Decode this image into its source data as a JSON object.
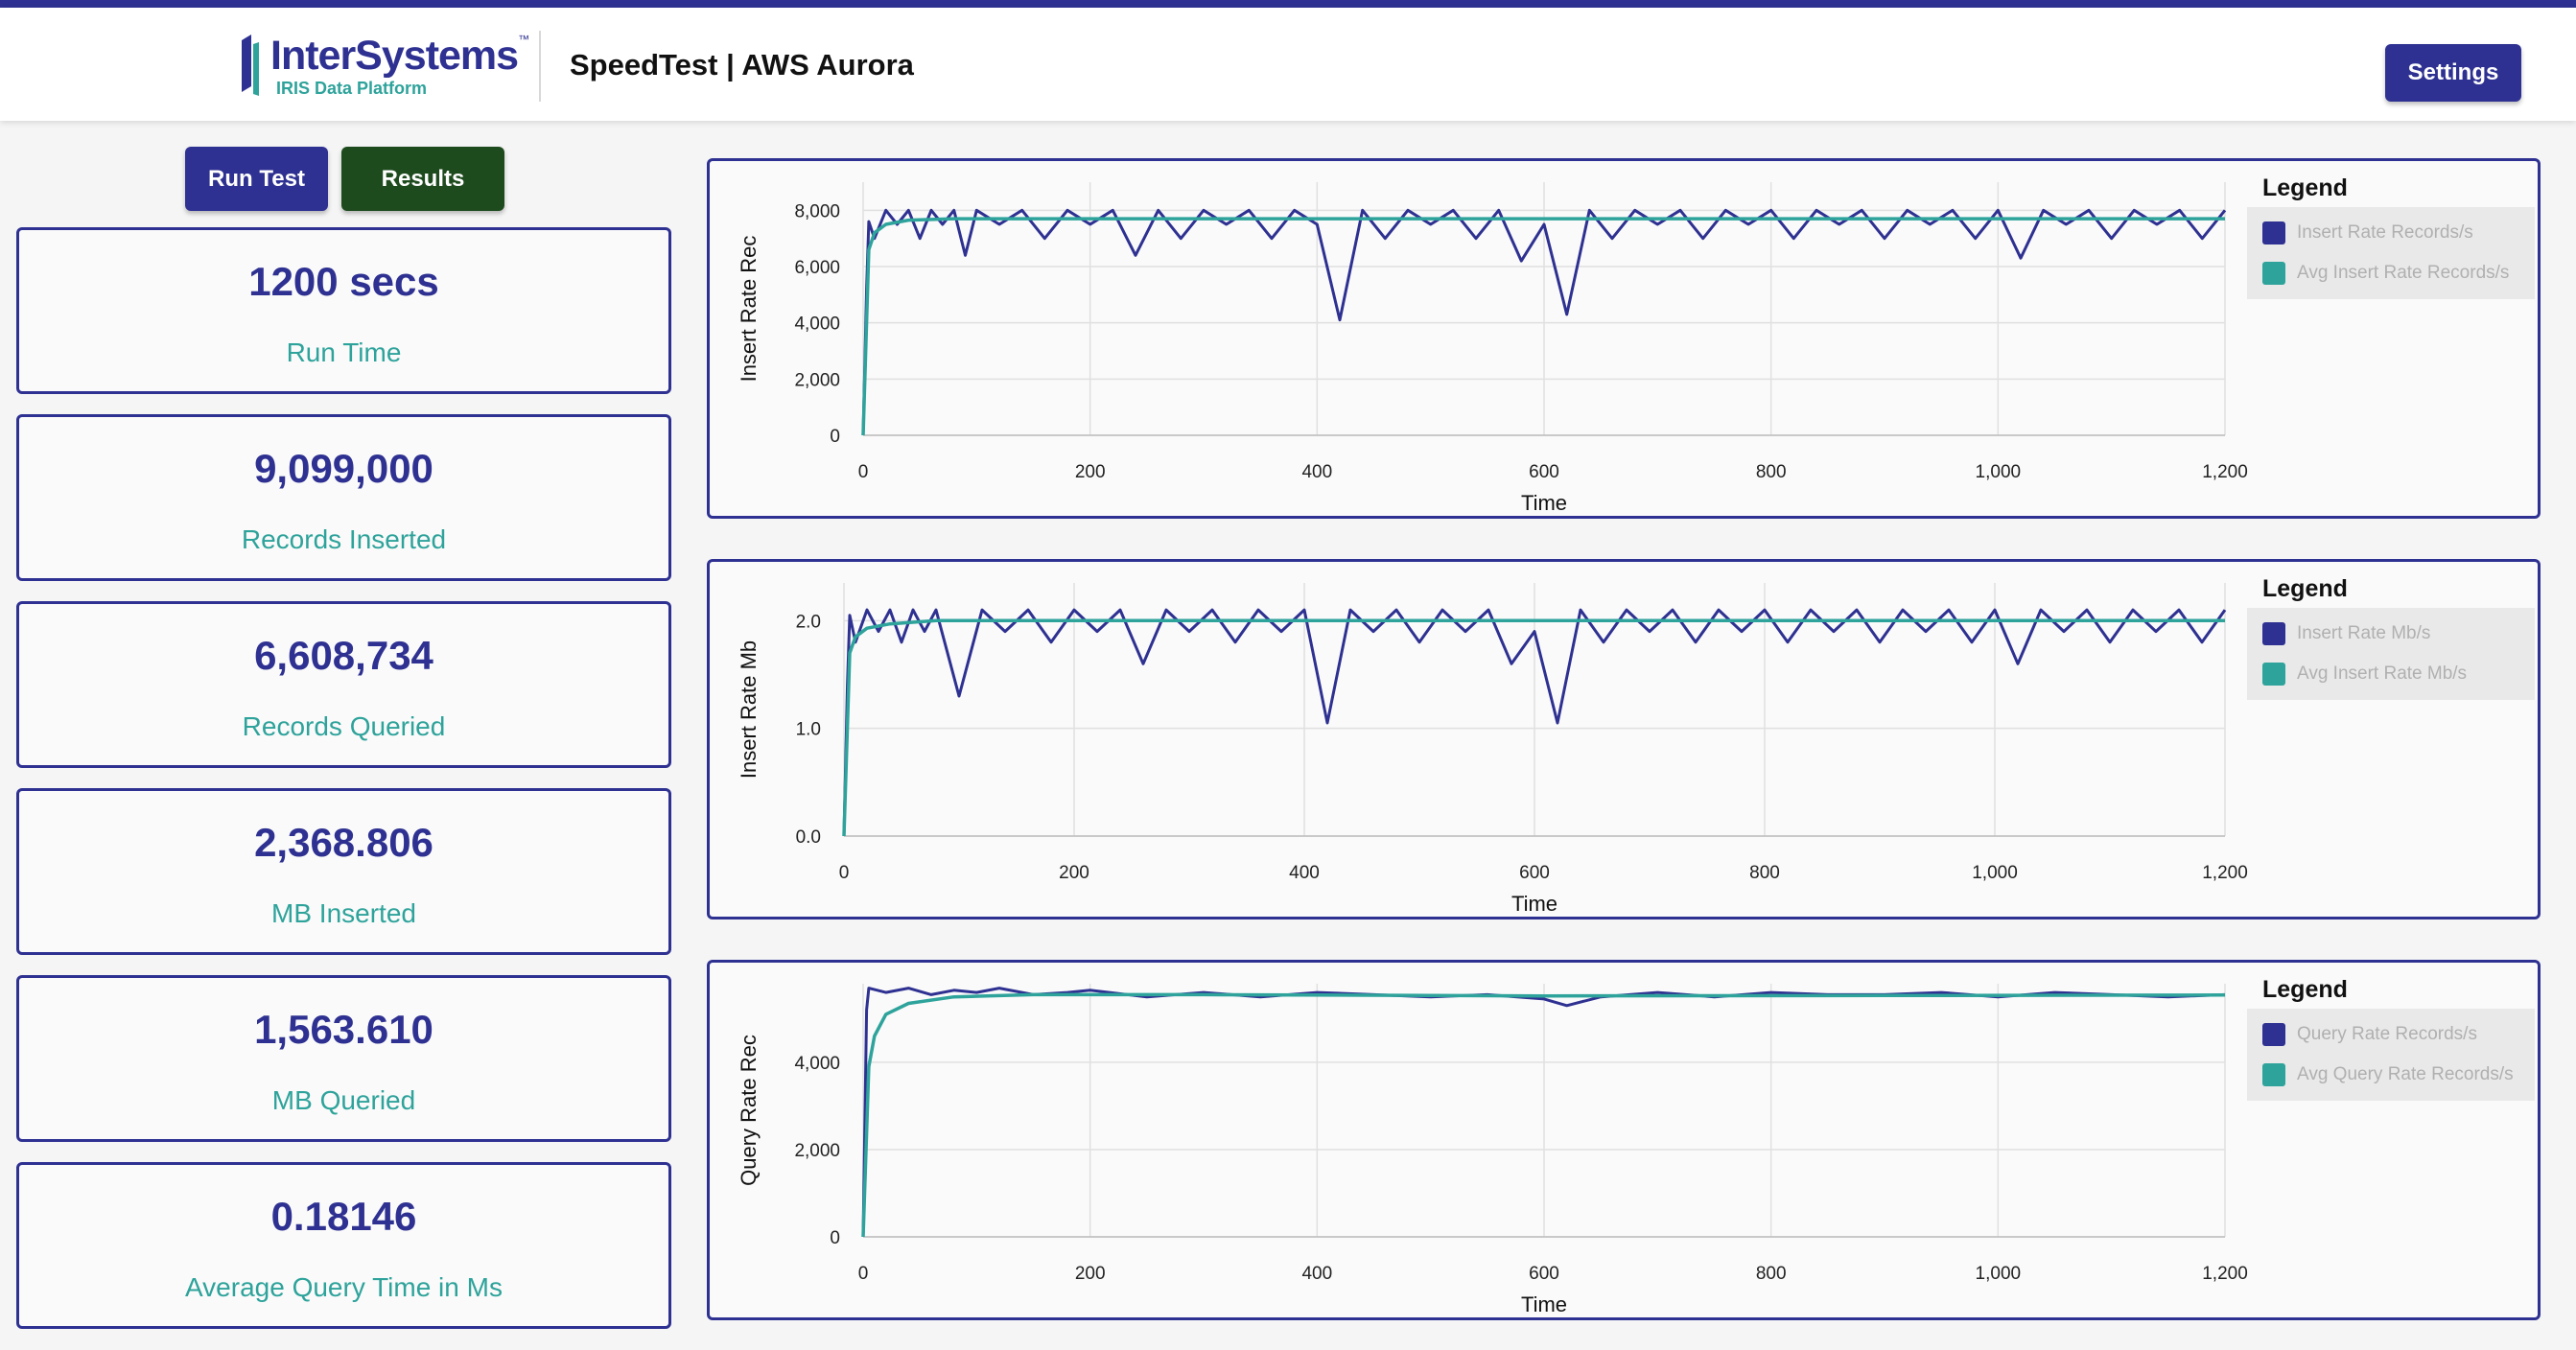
{
  "header": {
    "logo_name": "InterSystems",
    "logo_tm": "™",
    "logo_sub": "IRIS Data Platform",
    "title": "SpeedTest | AWS Aurora",
    "settings_label": "Settings"
  },
  "actions": {
    "run_label": "Run Test",
    "results_label": "Results"
  },
  "stats": [
    {
      "value": "1200 secs",
      "label": "Run Time"
    },
    {
      "value": "9,099,000",
      "label": "Records Inserted"
    },
    {
      "value": "6,608,734",
      "label": "Records Queried"
    },
    {
      "value": "2,368.806",
      "label": "MB Inserted"
    },
    {
      "value": "1,563.610",
      "label": "MB Queried"
    },
    {
      "value": "0.18146",
      "label": "Average Query Time in Ms"
    }
  ],
  "colors": {
    "primary": "#2e3191",
    "teal": "#2ea39b",
    "results_btn": "#1e4b1e",
    "grid": "#e0e0e0"
  },
  "chart_data": [
    {
      "type": "line",
      "ylabel": "Insert Rate Rec",
      "xlabel": "Time",
      "legend_title": "Legend",
      "legend_position": "right",
      "xlim": [
        0,
        1200
      ],
      "ylim": [
        0,
        9000
      ],
      "x_ticks": [
        0,
        200,
        400,
        600,
        800,
        1000,
        1200
      ],
      "x_tick_labels": [
        "0",
        "200",
        "400",
        "600",
        "800",
        "1,000",
        "1,200"
      ],
      "y_ticks": [
        0,
        2000,
        4000,
        6000,
        8000
      ],
      "y_tick_labels": [
        "0",
        "2,000",
        "4,000",
        "6,000",
        "8,000"
      ],
      "series": [
        {
          "name": "Insert Rate Records/s",
          "color": "#2e3191",
          "points": [
            [
              0,
              0
            ],
            [
              3,
              5200
            ],
            [
              5,
              7600
            ],
            [
              10,
              7000
            ],
            [
              20,
              8000
            ],
            [
              30,
              7500
            ],
            [
              40,
              8000
            ],
            [
              50,
              7000
            ],
            [
              60,
              8000
            ],
            [
              70,
              7500
            ],
            [
              80,
              8000
            ],
            [
              90,
              6400
            ],
            [
              100,
              8000
            ],
            [
              120,
              7500
            ],
            [
              140,
              8000
            ],
            [
              160,
              7000
            ],
            [
              180,
              8000
            ],
            [
              200,
              7500
            ],
            [
              220,
              8000
            ],
            [
              240,
              6400
            ],
            [
              260,
              8000
            ],
            [
              280,
              7000
            ],
            [
              300,
              8000
            ],
            [
              320,
              7500
            ],
            [
              340,
              8000
            ],
            [
              360,
              7000
            ],
            [
              380,
              8000
            ],
            [
              400,
              7500
            ],
            [
              420,
              4100
            ],
            [
              440,
              8000
            ],
            [
              460,
              7000
            ],
            [
              480,
              8000
            ],
            [
              500,
              7500
            ],
            [
              520,
              8000
            ],
            [
              540,
              7000
            ],
            [
              560,
              8000
            ],
            [
              580,
              6200
            ],
            [
              600,
              7500
            ],
            [
              620,
              4300
            ],
            [
              640,
              8000
            ],
            [
              660,
              7000
            ],
            [
              680,
              8000
            ],
            [
              700,
              7500
            ],
            [
              720,
              8000
            ],
            [
              740,
              7000
            ],
            [
              760,
              8000
            ],
            [
              780,
              7500
            ],
            [
              800,
              8000
            ],
            [
              820,
              7000
            ],
            [
              840,
              8000
            ],
            [
              860,
              7500
            ],
            [
              880,
              8000
            ],
            [
              900,
              7000
            ],
            [
              920,
              8000
            ],
            [
              940,
              7500
            ],
            [
              960,
              8000
            ],
            [
              980,
              7000
            ],
            [
              1000,
              8000
            ],
            [
              1020,
              6300
            ],
            [
              1040,
              8000
            ],
            [
              1060,
              7500
            ],
            [
              1080,
              8000
            ],
            [
              1100,
              7000
            ],
            [
              1120,
              8000
            ],
            [
              1140,
              7500
            ],
            [
              1160,
              8000
            ],
            [
              1180,
              7000
            ],
            [
              1200,
              8000
            ]
          ]
        },
        {
          "name": "Avg Insert Rate Records/s",
          "color": "#2ea39b",
          "points": [
            [
              0,
              0
            ],
            [
              5,
              6600
            ],
            [
              10,
              7200
            ],
            [
              20,
              7500
            ],
            [
              40,
              7650
            ],
            [
              80,
              7700
            ],
            [
              150,
              7700
            ],
            [
              300,
              7700
            ],
            [
              600,
              7700
            ],
            [
              900,
              7700
            ],
            [
              1200,
              7700
            ]
          ]
        }
      ]
    },
    {
      "type": "line",
      "ylabel": "Insert Rate Mb",
      "xlabel": "Time",
      "legend_title": "Legend",
      "legend_position": "right",
      "xlim": [
        0,
        1200
      ],
      "ylim": [
        0,
        2.35
      ],
      "x_ticks": [
        0,
        200,
        400,
        600,
        800,
        1000,
        1200
      ],
      "x_tick_labels": [
        "0",
        "200",
        "400",
        "600",
        "800",
        "1,000",
        "1,200"
      ],
      "y_ticks": [
        0,
        1,
        2
      ],
      "y_tick_labels": [
        "0.0",
        "1.0",
        "2.0"
      ],
      "series": [
        {
          "name": "Insert Rate Mb/s",
          "color": "#2e3191",
          "points": [
            [
              0,
              0
            ],
            [
              3,
              1.4
            ],
            [
              5,
              2.05
            ],
            [
              10,
              1.8
            ],
            [
              20,
              2.1
            ],
            [
              30,
              1.9
            ],
            [
              40,
              2.1
            ],
            [
              50,
              1.8
            ],
            [
              60,
              2.1
            ],
            [
              70,
              1.9
            ],
            [
              80,
              2.1
            ],
            [
              100,
              1.3
            ],
            [
              120,
              2.1
            ],
            [
              140,
              1.9
            ],
            [
              160,
              2.1
            ],
            [
              180,
              1.8
            ],
            [
              200,
              2.1
            ],
            [
              220,
              1.9
            ],
            [
              240,
              2.1
            ],
            [
              260,
              1.6
            ],
            [
              280,
              2.1
            ],
            [
              300,
              1.9
            ],
            [
              320,
              2.1
            ],
            [
              340,
              1.8
            ],
            [
              360,
              2.1
            ],
            [
              380,
              1.9
            ],
            [
              400,
              2.1
            ],
            [
              420,
              1.05
            ],
            [
              440,
              2.1
            ],
            [
              460,
              1.9
            ],
            [
              480,
              2.1
            ],
            [
              500,
              1.8
            ],
            [
              520,
              2.1
            ],
            [
              540,
              1.9
            ],
            [
              560,
              2.1
            ],
            [
              580,
              1.6
            ],
            [
              600,
              1.9
            ],
            [
              620,
              1.05
            ],
            [
              640,
              2.1
            ],
            [
              660,
              1.8
            ],
            [
              680,
              2.1
            ],
            [
              700,
              1.9
            ],
            [
              720,
              2.1
            ],
            [
              740,
              1.8
            ],
            [
              760,
              2.1
            ],
            [
              780,
              1.9
            ],
            [
              800,
              2.1
            ],
            [
              820,
              1.8
            ],
            [
              840,
              2.1
            ],
            [
              860,
              1.9
            ],
            [
              880,
              2.1
            ],
            [
              900,
              1.8
            ],
            [
              920,
              2.1
            ],
            [
              940,
              1.9
            ],
            [
              960,
              2.1
            ],
            [
              980,
              1.8
            ],
            [
              1000,
              2.1
            ],
            [
              1020,
              1.6
            ],
            [
              1040,
              2.1
            ],
            [
              1060,
              1.9
            ],
            [
              1080,
              2.1
            ],
            [
              1100,
              1.8
            ],
            [
              1120,
              2.1
            ],
            [
              1140,
              1.9
            ],
            [
              1160,
              2.1
            ],
            [
              1180,
              1.8
            ],
            [
              1200,
              2.1
            ]
          ]
        },
        {
          "name": "Avg Insert Rate Mb/s",
          "color": "#2ea39b",
          "points": [
            [
              0,
              0
            ],
            [
              5,
              1.7
            ],
            [
              10,
              1.85
            ],
            [
              20,
              1.93
            ],
            [
              40,
              1.97
            ],
            [
              80,
              2.0
            ],
            [
              150,
              2.0
            ],
            [
              300,
              2.0
            ],
            [
              600,
              2.0
            ],
            [
              900,
              2.0
            ],
            [
              1200,
              2.0
            ]
          ]
        }
      ]
    },
    {
      "type": "line",
      "ylabel": "Query Rate Rec",
      "xlabel": "Time",
      "legend_title": "Legend",
      "legend_position": "right",
      "xlim": [
        0,
        1200
      ],
      "ylim": [
        0,
        5800
      ],
      "x_ticks": [
        0,
        200,
        400,
        600,
        800,
        1000,
        1200
      ],
      "x_tick_labels": [
        "0",
        "200",
        "400",
        "600",
        "800",
        "1,000",
        "1,200"
      ],
      "y_ticks": [
        0,
        2000,
        4000
      ],
      "y_tick_labels": [
        "0",
        "2,000",
        "4,000"
      ],
      "series": [
        {
          "name": "Query Rate Records/s",
          "color": "#2e3191",
          "points": [
            [
              0,
              0
            ],
            [
              3,
              5200
            ],
            [
              5,
              5700
            ],
            [
              20,
              5600
            ],
            [
              40,
              5700
            ],
            [
              60,
              5550
            ],
            [
              80,
              5650
            ],
            [
              100,
              5600
            ],
            [
              120,
              5700
            ],
            [
              150,
              5550
            ],
            [
              180,
              5600
            ],
            [
              200,
              5650
            ],
            [
              250,
              5500
            ],
            [
              300,
              5600
            ],
            [
              350,
              5500
            ],
            [
              400,
              5600
            ],
            [
              450,
              5550
            ],
            [
              500,
              5500
            ],
            [
              550,
              5550
            ],
            [
              600,
              5450
            ],
            [
              620,
              5300
            ],
            [
              650,
              5500
            ],
            [
              700,
              5600
            ],
            [
              750,
              5500
            ],
            [
              800,
              5600
            ],
            [
              850,
              5550
            ],
            [
              900,
              5550
            ],
            [
              950,
              5600
            ],
            [
              1000,
              5500
            ],
            [
              1050,
              5600
            ],
            [
              1100,
              5550
            ],
            [
              1150,
              5500
            ],
            [
              1200,
              5550
            ]
          ]
        },
        {
          "name": "Avg Query Rate Records/s",
          "color": "#2ea39b",
          "points": [
            [
              0,
              0
            ],
            [
              5,
              3900
            ],
            [
              10,
              4600
            ],
            [
              20,
              5100
            ],
            [
              40,
              5350
            ],
            [
              80,
              5500
            ],
            [
              150,
              5550
            ],
            [
              300,
              5550
            ],
            [
              600,
              5520
            ],
            [
              900,
              5530
            ],
            [
              1200,
              5540
            ]
          ]
        }
      ]
    }
  ]
}
